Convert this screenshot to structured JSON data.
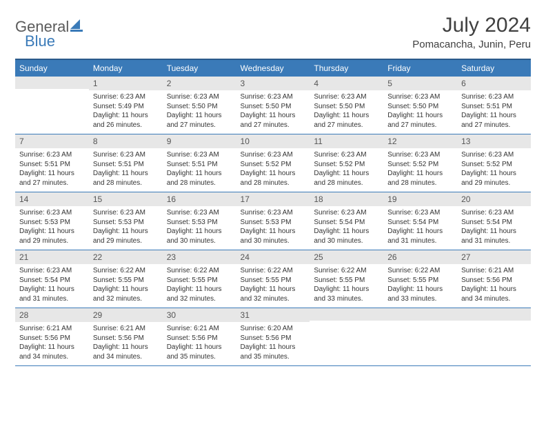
{
  "colors": {
    "header_bg": "#3a7ab8",
    "header_border": "#2a5a8a",
    "daynum_bg": "#e7e7e7",
    "text": "#333333",
    "title": "#404040"
  },
  "logo": {
    "text1": "General",
    "text2": "Blue"
  },
  "title": "July 2024",
  "location": "Pomacancha, Junin, Peru",
  "weekdays": [
    "Sunday",
    "Monday",
    "Tuesday",
    "Wednesday",
    "Thursday",
    "Friday",
    "Saturday"
  ],
  "weeks": [
    [
      {
        "num": "",
        "sunrise": "",
        "sunset": "",
        "daylight": ""
      },
      {
        "num": "1",
        "sunrise": "Sunrise: 6:23 AM",
        "sunset": "Sunset: 5:49 PM",
        "daylight": "Daylight: 11 hours and 26 minutes."
      },
      {
        "num": "2",
        "sunrise": "Sunrise: 6:23 AM",
        "sunset": "Sunset: 5:50 PM",
        "daylight": "Daylight: 11 hours and 27 minutes."
      },
      {
        "num": "3",
        "sunrise": "Sunrise: 6:23 AM",
        "sunset": "Sunset: 5:50 PM",
        "daylight": "Daylight: 11 hours and 27 minutes."
      },
      {
        "num": "4",
        "sunrise": "Sunrise: 6:23 AM",
        "sunset": "Sunset: 5:50 PM",
        "daylight": "Daylight: 11 hours and 27 minutes."
      },
      {
        "num": "5",
        "sunrise": "Sunrise: 6:23 AM",
        "sunset": "Sunset: 5:50 PM",
        "daylight": "Daylight: 11 hours and 27 minutes."
      },
      {
        "num": "6",
        "sunrise": "Sunrise: 6:23 AM",
        "sunset": "Sunset: 5:51 PM",
        "daylight": "Daylight: 11 hours and 27 minutes."
      }
    ],
    [
      {
        "num": "7",
        "sunrise": "Sunrise: 6:23 AM",
        "sunset": "Sunset: 5:51 PM",
        "daylight": "Daylight: 11 hours and 27 minutes."
      },
      {
        "num": "8",
        "sunrise": "Sunrise: 6:23 AM",
        "sunset": "Sunset: 5:51 PM",
        "daylight": "Daylight: 11 hours and 28 minutes."
      },
      {
        "num": "9",
        "sunrise": "Sunrise: 6:23 AM",
        "sunset": "Sunset: 5:51 PM",
        "daylight": "Daylight: 11 hours and 28 minutes."
      },
      {
        "num": "10",
        "sunrise": "Sunrise: 6:23 AM",
        "sunset": "Sunset: 5:52 PM",
        "daylight": "Daylight: 11 hours and 28 minutes."
      },
      {
        "num": "11",
        "sunrise": "Sunrise: 6:23 AM",
        "sunset": "Sunset: 5:52 PM",
        "daylight": "Daylight: 11 hours and 28 minutes."
      },
      {
        "num": "12",
        "sunrise": "Sunrise: 6:23 AM",
        "sunset": "Sunset: 5:52 PM",
        "daylight": "Daylight: 11 hours and 28 minutes."
      },
      {
        "num": "13",
        "sunrise": "Sunrise: 6:23 AM",
        "sunset": "Sunset: 5:52 PM",
        "daylight": "Daylight: 11 hours and 29 minutes."
      }
    ],
    [
      {
        "num": "14",
        "sunrise": "Sunrise: 6:23 AM",
        "sunset": "Sunset: 5:53 PM",
        "daylight": "Daylight: 11 hours and 29 minutes."
      },
      {
        "num": "15",
        "sunrise": "Sunrise: 6:23 AM",
        "sunset": "Sunset: 5:53 PM",
        "daylight": "Daylight: 11 hours and 29 minutes."
      },
      {
        "num": "16",
        "sunrise": "Sunrise: 6:23 AM",
        "sunset": "Sunset: 5:53 PM",
        "daylight": "Daylight: 11 hours and 30 minutes."
      },
      {
        "num": "17",
        "sunrise": "Sunrise: 6:23 AM",
        "sunset": "Sunset: 5:53 PM",
        "daylight": "Daylight: 11 hours and 30 minutes."
      },
      {
        "num": "18",
        "sunrise": "Sunrise: 6:23 AM",
        "sunset": "Sunset: 5:54 PM",
        "daylight": "Daylight: 11 hours and 30 minutes."
      },
      {
        "num": "19",
        "sunrise": "Sunrise: 6:23 AM",
        "sunset": "Sunset: 5:54 PM",
        "daylight": "Daylight: 11 hours and 31 minutes."
      },
      {
        "num": "20",
        "sunrise": "Sunrise: 6:23 AM",
        "sunset": "Sunset: 5:54 PM",
        "daylight": "Daylight: 11 hours and 31 minutes."
      }
    ],
    [
      {
        "num": "21",
        "sunrise": "Sunrise: 6:23 AM",
        "sunset": "Sunset: 5:54 PM",
        "daylight": "Daylight: 11 hours and 31 minutes."
      },
      {
        "num": "22",
        "sunrise": "Sunrise: 6:22 AM",
        "sunset": "Sunset: 5:55 PM",
        "daylight": "Daylight: 11 hours and 32 minutes."
      },
      {
        "num": "23",
        "sunrise": "Sunrise: 6:22 AM",
        "sunset": "Sunset: 5:55 PM",
        "daylight": "Daylight: 11 hours and 32 minutes."
      },
      {
        "num": "24",
        "sunrise": "Sunrise: 6:22 AM",
        "sunset": "Sunset: 5:55 PM",
        "daylight": "Daylight: 11 hours and 32 minutes."
      },
      {
        "num": "25",
        "sunrise": "Sunrise: 6:22 AM",
        "sunset": "Sunset: 5:55 PM",
        "daylight": "Daylight: 11 hours and 33 minutes."
      },
      {
        "num": "26",
        "sunrise": "Sunrise: 6:22 AM",
        "sunset": "Sunset: 5:55 PM",
        "daylight": "Daylight: 11 hours and 33 minutes."
      },
      {
        "num": "27",
        "sunrise": "Sunrise: 6:21 AM",
        "sunset": "Sunset: 5:56 PM",
        "daylight": "Daylight: 11 hours and 34 minutes."
      }
    ],
    [
      {
        "num": "28",
        "sunrise": "Sunrise: 6:21 AM",
        "sunset": "Sunset: 5:56 PM",
        "daylight": "Daylight: 11 hours and 34 minutes."
      },
      {
        "num": "29",
        "sunrise": "Sunrise: 6:21 AM",
        "sunset": "Sunset: 5:56 PM",
        "daylight": "Daylight: 11 hours and 34 minutes."
      },
      {
        "num": "30",
        "sunrise": "Sunrise: 6:21 AM",
        "sunset": "Sunset: 5:56 PM",
        "daylight": "Daylight: 11 hours and 35 minutes."
      },
      {
        "num": "31",
        "sunrise": "Sunrise: 6:20 AM",
        "sunset": "Sunset: 5:56 PM",
        "daylight": "Daylight: 11 hours and 35 minutes."
      },
      {
        "num": "",
        "sunrise": "",
        "sunset": "",
        "daylight": ""
      },
      {
        "num": "",
        "sunrise": "",
        "sunset": "",
        "daylight": ""
      },
      {
        "num": "",
        "sunrise": "",
        "sunset": "",
        "daylight": ""
      }
    ]
  ]
}
